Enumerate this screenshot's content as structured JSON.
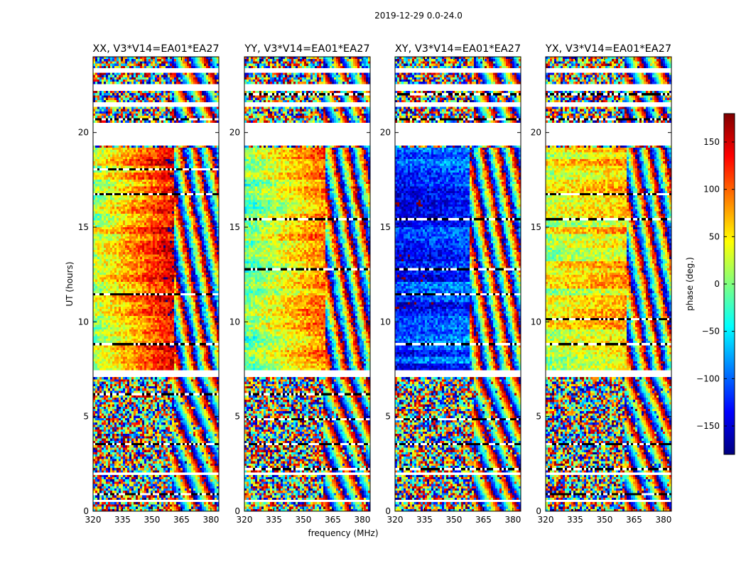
{
  "chart_data": {
    "type": "heatmap",
    "suptitle": "2019-12-29 0.0-24.0",
    "xlabel": "frequency (MHz)",
    "ylabel": "UT (hours)",
    "xlim": [
      320,
      384
    ],
    "ylim": [
      0,
      24
    ],
    "xticks": [
      320,
      335,
      350,
      365,
      380
    ],
    "yticks": [
      0,
      5,
      10,
      15,
      20
    ],
    "panels": [
      {
        "title": "XX, V3*V14=EA01*EA27",
        "pol": "XX",
        "coherent_until_MHz": 361,
        "mean_phase_deg": 60,
        "phase_slope_deg_per_MHz": 3.2
      },
      {
        "title": "YY, V3*V14=EA01*EA27",
        "pol": "YY",
        "coherent_until_MHz": 361,
        "mean_phase_deg": 30,
        "phase_slope_deg_per_MHz": 2.6
      },
      {
        "title": "XY, V3*V14=EA01*EA27",
        "pol": "XY",
        "coherent_until_MHz": 358,
        "mean_phase_deg": -120,
        "phase_slope_deg_per_MHz": 0.6
      },
      {
        "title": "YX, V3*V14=EA01*EA27",
        "pol": "YX",
        "coherent_until_MHz": 361,
        "mean_phase_deg": 40,
        "phase_slope_deg_per_MHz": 0.9
      }
    ],
    "flagged_ut_ranges": [
      [
        0.45,
        0.6
      ],
      [
        1.95,
        2.1
      ],
      [
        7.1,
        7.45
      ],
      [
        19.3,
        20.5
      ],
      [
        21.4,
        21.6
      ],
      [
        22.2,
        22.5
      ],
      [
        23.2,
        23.35
      ]
    ],
    "coherent_ut_range": [
      7.5,
      19.2
    ],
    "colorbar": {
      "label": "phase (deg.)",
      "range": [
        -180,
        180
      ],
      "ticks": [
        150,
        100,
        50,
        0,
        -50,
        -100,
        -150
      ],
      "tick_labels": [
        "150",
        "100",
        "50",
        "0",
        "−50",
        "−100",
        "−150"
      ],
      "colormap": "jet",
      "colors": [
        "#00007f",
        "#0000ff",
        "#007fff",
        "#00ffff",
        "#7fff7f",
        "#ffff00",
        "#ff7f00",
        "#ff0000",
        "#7f0000"
      ]
    }
  }
}
